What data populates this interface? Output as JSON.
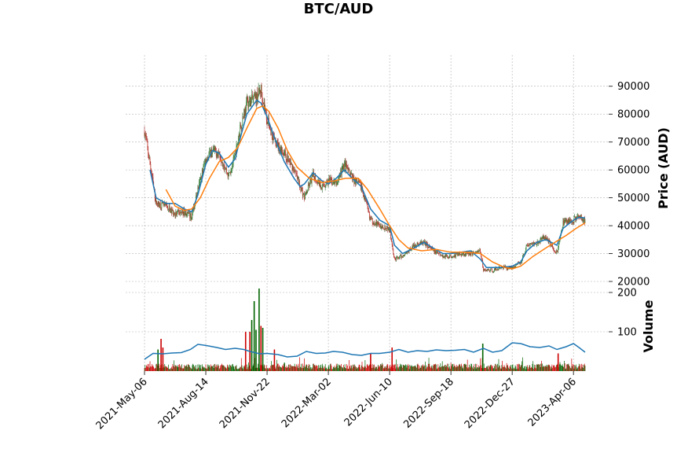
{
  "chart_data": {
    "type": "candlestick",
    "title": "BTC/AUD",
    "xlabel": "",
    "price_panel": {
      "ylabel": "Price (AUD)",
      "ylim": [
        20000,
        95000
      ],
      "yticks": [
        20000,
        30000,
        40000,
        50000,
        60000,
        70000,
        80000,
        90000
      ],
      "ytick_labels": [
        "20000",
        "30000",
        "40000",
        "50000",
        "60000",
        "70000",
        "80000",
        "90000"
      ],
      "series": [
        {
          "name": "close",
          "color": "#000000",
          "points": [
            [
              "2021-05-06",
              74000
            ],
            [
              "2021-05-15",
              62000
            ],
            [
              "2021-05-25",
              48000
            ],
            [
              "2021-06-10",
              47000
            ],
            [
              "2021-06-25",
              44000
            ],
            [
              "2021-07-10",
              45000
            ],
            [
              "2021-07-22",
              43000
            ],
            [
              "2021-08-01",
              53000
            ],
            [
              "2021-08-14",
              64000
            ],
            [
              "2021-08-25",
              67000
            ],
            [
              "2021-09-05",
              66000
            ],
            [
              "2021-09-20",
              58000
            ],
            [
              "2021-10-01",
              65000
            ],
            [
              "2021-10-10",
              76000
            ],
            [
              "2021-10-20",
              84000
            ],
            [
              "2021-11-05",
              86000
            ],
            [
              "2021-11-12",
              89000
            ],
            [
              "2021-11-22",
              78000
            ],
            [
              "2021-12-05",
              70000
            ],
            [
              "2021-12-20",
              66000
            ],
            [
              "2022-01-05",
              60000
            ],
            [
              "2022-01-22",
              50000
            ],
            [
              "2022-02-05",
              58000
            ],
            [
              "2022-02-20",
              54000
            ],
            [
              "2022-03-02",
              56000
            ],
            [
              "2022-03-15",
              55000
            ],
            [
              "2022-03-28",
              62000
            ],
            [
              "2022-04-10",
              57000
            ],
            [
              "2022-04-25",
              54000
            ],
            [
              "2022-05-10",
              42000
            ],
            [
              "2022-05-25",
              40000
            ],
            [
              "2022-06-10",
              39000
            ],
            [
              "2022-06-18",
              28000
            ],
            [
              "2022-07-01",
              29000
            ],
            [
              "2022-07-20",
              33000
            ],
            [
              "2022-08-05",
              34000
            ],
            [
              "2022-08-20",
              31000
            ],
            [
              "2022-09-05",
              29000
            ],
            [
              "2022-09-18",
              29000
            ],
            [
              "2022-10-05",
              30000
            ],
            [
              "2022-10-20",
              30000
            ],
            [
              "2022-11-05",
              31000
            ],
            [
              "2022-11-10",
              24000
            ],
            [
              "2022-11-25",
              24000
            ],
            [
              "2022-12-10",
              25000
            ],
            [
              "2022-12-27",
              25000
            ],
            [
              "2023-01-10",
              27000
            ],
            [
              "2023-01-20",
              33000
            ],
            [
              "2023-02-05",
              34000
            ],
            [
              "2023-02-20",
              36000
            ],
            [
              "2023-03-10",
              30000
            ],
            [
              "2023-03-20",
              41000
            ],
            [
              "2023-04-06",
              42000
            ],
            [
              "2023-04-15",
              44000
            ],
            [
              "2023-04-25",
              41000
            ]
          ]
        },
        {
          "name": "moving-average-short",
          "color": "#1f77b4",
          "points": [
            [
              "2021-05-15",
              60000
            ],
            [
              "2021-05-25",
              50000
            ],
            [
              "2021-06-10",
              48000
            ],
            [
              "2021-06-25",
              48000
            ],
            [
              "2021-07-10",
              46000
            ],
            [
              "2021-07-22",
              45000
            ],
            [
              "2021-08-01",
              51000
            ],
            [
              "2021-08-14",
              62000
            ],
            [
              "2021-08-25",
              67000
            ],
            [
              "2021-09-05",
              66000
            ],
            [
              "2021-09-20",
              61000
            ],
            [
              "2021-10-01",
              64000
            ],
            [
              "2021-10-10",
              72000
            ],
            [
              "2021-10-20",
              80000
            ],
            [
              "2021-11-05",
              85000
            ],
            [
              "2021-11-12",
              84000
            ],
            [
              "2021-11-22",
              79000
            ],
            [
              "2021-12-05",
              71000
            ],
            [
              "2021-12-20",
              63000
            ],
            [
              "2022-01-05",
              57000
            ],
            [
              "2022-01-15",
              54000
            ],
            [
              "2022-01-22",
              55000
            ],
            [
              "2022-02-05",
              59000
            ],
            [
              "2022-02-20",
              56000
            ],
            [
              "2022-03-02",
              55000
            ],
            [
              "2022-03-15",
              57000
            ],
            [
              "2022-03-28",
              60000
            ],
            [
              "2022-04-10",
              57000
            ],
            [
              "2022-04-25",
              54000
            ],
            [
              "2022-05-10",
              46000
            ],
            [
              "2022-05-25",
              42000
            ],
            [
              "2022-06-10",
              40000
            ],
            [
              "2022-06-18",
              33000
            ],
            [
              "2022-07-01",
              30000
            ],
            [
              "2022-07-20",
              32000
            ],
            [
              "2022-08-05",
              34000
            ],
            [
              "2022-08-20",
              32000
            ],
            [
              "2022-09-05",
              30000
            ],
            [
              "2022-09-18",
              30000
            ],
            [
              "2022-10-05",
              30500
            ],
            [
              "2022-10-20",
              31000
            ],
            [
              "2022-11-05",
              28000
            ],
            [
              "2022-11-15",
              25000
            ],
            [
              "2022-12-10",
              25000
            ],
            [
              "2022-12-27",
              25500
            ],
            [
              "2023-01-10",
              27000
            ],
            [
              "2023-01-20",
              31000
            ],
            [
              "2023-02-05",
              34000
            ],
            [
              "2023-02-20",
              35000
            ],
            [
              "2023-03-10",
              33000
            ],
            [
              "2023-03-20",
              39000
            ],
            [
              "2023-04-06",
              42000
            ],
            [
              "2023-04-15",
              43000
            ],
            [
              "2023-04-25",
              42800
            ]
          ]
        },
        {
          "name": "moving-average-long",
          "color": "#ff7f0e",
          "points": [
            [
              "2021-06-10",
              53000
            ],
            [
              "2021-06-25",
              47000
            ],
            [
              "2021-07-10",
              45500
            ],
            [
              "2021-07-22",
              46000
            ],
            [
              "2021-08-05",
              50000
            ],
            [
              "2021-08-20",
              57000
            ],
            [
              "2021-09-05",
              63000
            ],
            [
              "2021-09-20",
              64500
            ],
            [
              "2021-10-05",
              68000
            ],
            [
              "2021-10-20",
              75000
            ],
            [
              "2021-11-05",
              82000
            ],
            [
              "2021-11-15",
              83000
            ],
            [
              "2021-11-25",
              81000
            ],
            [
              "2021-12-10",
              75000
            ],
            [
              "2021-12-25",
              67000
            ],
            [
              "2022-01-10",
              61000
            ],
            [
              "2022-01-30",
              57000
            ],
            [
              "2022-02-20",
              55500
            ],
            [
              "2022-03-10",
              56000
            ],
            [
              "2022-03-30",
              57000
            ],
            [
              "2022-04-20",
              57000
            ],
            [
              "2022-05-05",
              53000
            ],
            [
              "2022-05-25",
              46000
            ],
            [
              "2022-06-10",
              40000
            ],
            [
              "2022-06-25",
              35000
            ],
            [
              "2022-07-10",
              32000
            ],
            [
              "2022-08-01",
              31000
            ],
            [
              "2022-08-25",
              31500
            ],
            [
              "2022-09-18",
              30500
            ],
            [
              "2022-10-15",
              30500
            ],
            [
              "2022-11-05",
              30000
            ],
            [
              "2022-11-25",
              27000
            ],
            [
              "2022-12-15",
              25000
            ],
            [
              "2022-12-27",
              24500
            ],
            [
              "2023-01-10",
              25500
            ],
            [
              "2023-01-30",
              29000
            ],
            [
              "2023-02-20",
              32000
            ],
            [
              "2023-03-10",
              34500
            ],
            [
              "2023-03-25",
              36500
            ],
            [
              "2023-04-10",
              39000
            ],
            [
              "2023-04-25",
              41000
            ]
          ]
        }
      ]
    },
    "volume_panel": {
      "ylabel": "Volume",
      "ylim": [
        0,
        220
      ],
      "yticks": [
        100,
        200
      ],
      "ytick_labels": [
        "100",
        "200"
      ],
      "series": [
        {
          "name": "volume-moving-average",
          "color": "#1f77b4",
          "points": [
            [
              "2021-05-06",
              30
            ],
            [
              "2021-05-20",
              45
            ],
            [
              "2021-06-05",
              44
            ],
            [
              "2021-06-20",
              46
            ],
            [
              "2021-07-05",
              47
            ],
            [
              "2021-07-20",
              55
            ],
            [
              "2021-08-01",
              68
            ],
            [
              "2021-08-15",
              65
            ],
            [
              "2021-09-01",
              60
            ],
            [
              "2021-09-15",
              55
            ],
            [
              "2021-10-01",
              58
            ],
            [
              "2021-10-15",
              55
            ],
            [
              "2021-10-25",
              50
            ],
            [
              "2021-11-10",
              44
            ],
            [
              "2021-11-22",
              45
            ],
            [
              "2021-12-10",
              42
            ],
            [
              "2021-12-25",
              36
            ],
            [
              "2022-01-10",
              38
            ],
            [
              "2022-01-25",
              50
            ],
            [
              "2022-02-10",
              45
            ],
            [
              "2022-02-25",
              46
            ],
            [
              "2022-03-10",
              50
            ],
            [
              "2022-03-25",
              48
            ],
            [
              "2022-04-10",
              42
            ],
            [
              "2022-04-25",
              40
            ],
            [
              "2022-05-10",
              45
            ],
            [
              "2022-05-25",
              45
            ],
            [
              "2022-06-10",
              48
            ],
            [
              "2022-06-25",
              55
            ],
            [
              "2022-07-10",
              48
            ],
            [
              "2022-07-25",
              52
            ],
            [
              "2022-08-10",
              50
            ],
            [
              "2022-08-25",
              54
            ],
            [
              "2022-09-10",
              52
            ],
            [
              "2022-09-25",
              53
            ],
            [
              "2022-10-10",
              55
            ],
            [
              "2022-10-25",
              48
            ],
            [
              "2022-11-10",
              58
            ],
            [
              "2022-11-25",
              48
            ],
            [
              "2022-12-10",
              52
            ],
            [
              "2022-12-27",
              72
            ],
            [
              "2023-01-10",
              70
            ],
            [
              "2023-01-25",
              62
            ],
            [
              "2023-02-10",
              60
            ],
            [
              "2023-02-25",
              64
            ],
            [
              "2023-03-10",
              55
            ],
            [
              "2023-03-25",
              62
            ],
            [
              "2023-04-06",
              70
            ],
            [
              "2023-04-15",
              60
            ],
            [
              "2023-04-25",
              48
            ]
          ]
        }
      ],
      "spike_bars": [
        {
          "date": "2021-05-28",
          "value": 55,
          "direction": "up"
        },
        {
          "date": "2021-06-02",
          "value": 82,
          "direction": "down"
        },
        {
          "date": "2021-06-05",
          "value": 60,
          "direction": "down"
        },
        {
          "date": "2021-10-18",
          "value": 100,
          "direction": "down"
        },
        {
          "date": "2021-10-25",
          "value": 100,
          "direction": "down"
        },
        {
          "date": "2021-10-28",
          "value": 130,
          "direction": "up"
        },
        {
          "date": "2021-11-01",
          "value": 178,
          "direction": "up"
        },
        {
          "date": "2021-11-04",
          "value": 105,
          "direction": "up"
        },
        {
          "date": "2021-11-09",
          "value": 210,
          "direction": "up"
        },
        {
          "date": "2021-11-12",
          "value": 115,
          "direction": "down"
        },
        {
          "date": "2021-11-15",
          "value": 110,
          "direction": "up"
        },
        {
          "date": "2021-12-04",
          "value": 55,
          "direction": "down"
        },
        {
          "date": "2022-05-10",
          "value": 45,
          "direction": "down"
        },
        {
          "date": "2022-06-14",
          "value": 60,
          "direction": "down"
        },
        {
          "date": "2022-11-09",
          "value": 70,
          "direction": "up"
        },
        {
          "date": "2023-03-12",
          "value": 45,
          "direction": "down"
        }
      ],
      "up_color": "#006400",
      "down_color": "#cc0000"
    },
    "x_ticks": [
      "2021-May-06",
      "2021-Aug-14",
      "2021-Nov-22",
      "2022-Mar-02",
      "2022-Jun-10",
      "2022-Sep-18",
      "2022-Dec-27",
      "2023-Apr-06"
    ],
    "x_range": [
      "2021-05-06",
      "2023-04-25"
    ],
    "grid": true
  }
}
